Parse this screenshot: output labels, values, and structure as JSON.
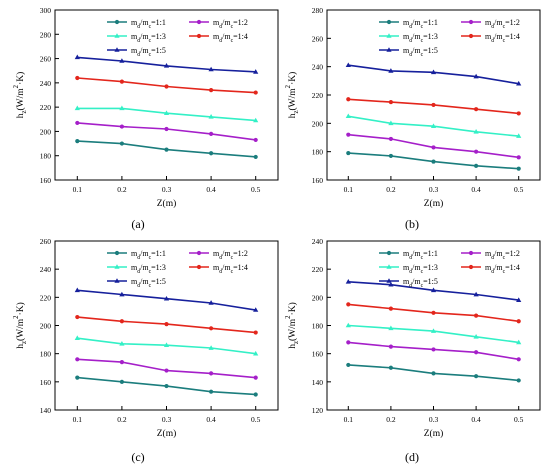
{
  "series_colors": [
    "#1b7d7d",
    "#a51fc9",
    "#33f0c6",
    "#e3261c",
    "#16209c"
  ],
  "chart_data": [
    {
      "type": "line",
      "panel_label": "(a)",
      "xlabel": "Z(m)",
      "ylabel": "h_z(W/m^2·K)",
      "xlim": [
        0.05,
        0.55
      ],
      "ylim": [
        160,
        300
      ],
      "x_ticks": [
        0.1,
        0.2,
        0.3,
        0.4,
        0.5
      ],
      "x_tick_labels": [
        "0.1",
        "0.2",
        "0.3",
        "0.4",
        "0.5"
      ],
      "y_ticks": [
        160,
        180,
        200,
        220,
        240,
        260,
        280,
        300
      ],
      "y_tick_labels": [
        "160",
        "180",
        "200",
        "220",
        "240",
        "260",
        "280",
        "300"
      ],
      "legend_position": "top-right",
      "x": [
        0.1,
        0.2,
        0.3,
        0.4,
        0.5
      ],
      "series": [
        {
          "name": "m_d/m_c=1:1",
          "values": [
            192,
            190,
            185,
            182,
            179
          ]
        },
        {
          "name": "m_d/m_c=1:2",
          "values": [
            207,
            204,
            202,
            198,
            193
          ]
        },
        {
          "name": "m_d/m_c=1:3",
          "values": [
            219,
            219,
            215,
            212,
            209
          ]
        },
        {
          "name": "m_d/m_c=1:4",
          "values": [
            244,
            241,
            237,
            234,
            232
          ]
        },
        {
          "name": "m_d/m_c=1:5",
          "values": [
            261,
            258,
            254,
            251,
            249
          ]
        }
      ]
    },
    {
      "type": "line",
      "panel_label": "(b)",
      "xlabel": "Z(m)",
      "ylabel": "h_z(W/m^2·K)",
      "xlim": [
        0.05,
        0.55
      ],
      "ylim": [
        160,
        280
      ],
      "x_ticks": [
        0.1,
        0.2,
        0.3,
        0.4,
        0.5
      ],
      "x_tick_labels": [
        "0.1",
        "0.2",
        "0.3",
        "0.4",
        "0.5"
      ],
      "y_ticks": [
        160,
        180,
        200,
        220,
        240,
        260,
        280
      ],
      "y_tick_labels": [
        "160",
        "180",
        "200",
        "220",
        "240",
        "260",
        "280"
      ],
      "legend_position": "top-right",
      "x": [
        0.1,
        0.2,
        0.3,
        0.4,
        0.5
      ],
      "series": [
        {
          "name": "m_d/m_c=1:1",
          "values": [
            179,
            177,
            173,
            170,
            168
          ]
        },
        {
          "name": "m_d/m_c=1:2",
          "values": [
            192,
            189,
            183,
            180,
            176
          ]
        },
        {
          "name": "m_d/m_c=1:3",
          "values": [
            205,
            200,
            198,
            194,
            191
          ]
        },
        {
          "name": "m_d/m_c=1:4",
          "values": [
            217,
            215,
            213,
            210,
            207
          ]
        },
        {
          "name": "m_d/m_c=1:5",
          "values": [
            241,
            237,
            236,
            233,
            228
          ]
        }
      ]
    },
    {
      "type": "line",
      "panel_label": "(c)",
      "xlabel": "Z(m)",
      "ylabel": "h_z(W/m^2·K)",
      "xlim": [
        0.05,
        0.55
      ],
      "ylim": [
        140,
        260
      ],
      "x_ticks": [
        0.1,
        0.2,
        0.3,
        0.4,
        0.5
      ],
      "x_tick_labels": [
        "0.1",
        "0.2",
        "0.3",
        "0.4",
        "0.5"
      ],
      "y_ticks": [
        140,
        160,
        180,
        200,
        220,
        240,
        260
      ],
      "y_tick_labels": [
        "140",
        "160",
        "180",
        "200",
        "220",
        "240",
        "260"
      ],
      "legend_position": "top-right",
      "x": [
        0.1,
        0.2,
        0.3,
        0.4,
        0.5
      ],
      "series": [
        {
          "name": "m_d/m_c=1:1",
          "values": [
            163,
            160,
            157,
            153,
            151
          ]
        },
        {
          "name": "m_d/m_c=1:2",
          "values": [
            176,
            174,
            168,
            166,
            163
          ]
        },
        {
          "name": "m_d/m_c=1:3",
          "values": [
            191,
            187,
            186,
            184,
            180
          ]
        },
        {
          "name": "m_d/m_c=1:4",
          "values": [
            206,
            203,
            201,
            198,
            195
          ]
        },
        {
          "name": "m_d/m_c=1:5",
          "values": [
            225,
            222,
            219,
            216,
            211
          ]
        }
      ]
    },
    {
      "type": "line",
      "panel_label": "(d)",
      "xlabel": "Z(m)",
      "ylabel": "h_z(W/m^2·K)",
      "xlim": [
        0.05,
        0.55
      ],
      "ylim": [
        120,
        240
      ],
      "x_ticks": [
        0.1,
        0.2,
        0.3,
        0.4,
        0.5
      ],
      "x_tick_labels": [
        "0.1",
        "0.2",
        "0.3",
        "0.4",
        "0.5"
      ],
      "y_ticks": [
        120,
        140,
        160,
        180,
        200,
        220,
        240
      ],
      "y_tick_labels": [
        "120",
        "140",
        "160",
        "180",
        "200",
        "220",
        "240"
      ],
      "legend_position": "top-right",
      "x": [
        0.1,
        0.2,
        0.3,
        0.4,
        0.5
      ],
      "series": [
        {
          "name": "m_d/m_c=1:1",
          "values": [
            152,
            150,
            146,
            144,
            141
          ]
        },
        {
          "name": "m_d/m_c=1:2",
          "values": [
            168,
            165,
            163,
            161,
            156
          ]
        },
        {
          "name": "m_d/m_c=1:3",
          "values": [
            180,
            178,
            176,
            172,
            168
          ]
        },
        {
          "name": "m_d/m_c=1:4",
          "values": [
            195,
            192,
            189,
            187,
            183
          ]
        },
        {
          "name": "m_d/m_c=1:5",
          "values": [
            211,
            209,
            205,
            202,
            198
          ]
        }
      ]
    }
  ]
}
